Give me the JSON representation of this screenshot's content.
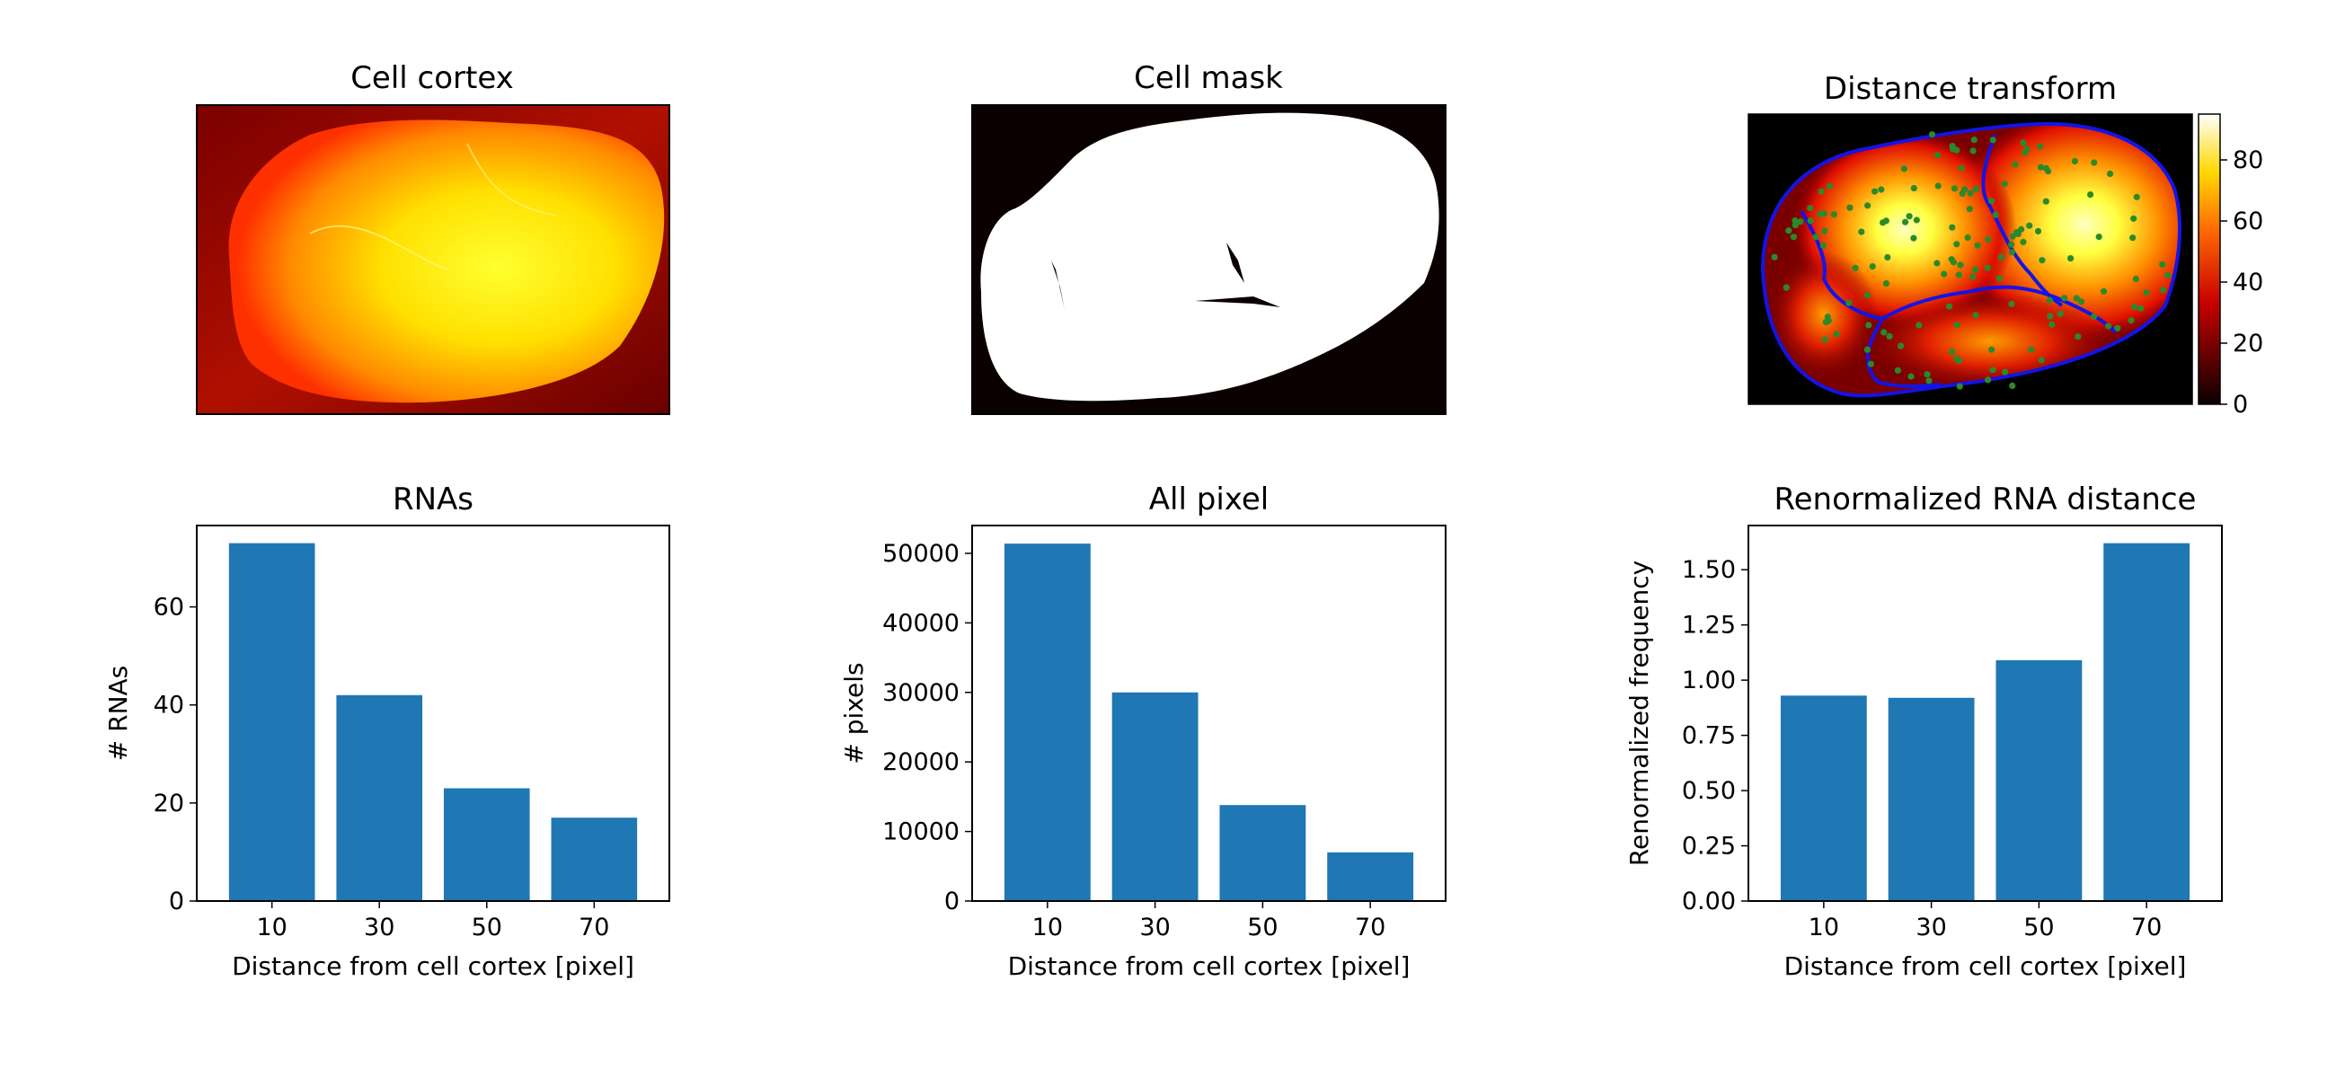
{
  "figure": {
    "panels": [
      {
        "title": "Cell cortex"
      },
      {
        "title": "Cell mask"
      },
      {
        "title": "Distance transform"
      }
    ],
    "colorbar": {
      "ticks": [
        "0",
        "20",
        "40",
        "60",
        "80"
      ],
      "range": [
        0,
        95
      ]
    },
    "colors": {
      "bar": "#1f77b4",
      "contour": "#1414e6",
      "rna_points": "#2a8a2a"
    }
  },
  "chart_data": [
    {
      "type": "bar",
      "title": "RNAs",
      "xlabel": "Distance from cell cortex [pixel]",
      "ylabel": "# RNAs",
      "categories": [
        "10",
        "30",
        "50",
        "70"
      ],
      "values": [
        73,
        42,
        23,
        17
      ],
      "ylim": [
        0,
        76.6
      ],
      "yticks": [
        0,
        20,
        40,
        60
      ],
      "ytick_labels": [
        "0",
        "20",
        "40",
        "60"
      ]
    },
    {
      "type": "bar",
      "title": "All pixel",
      "xlabel": "Distance from cell cortex [pixel]",
      "ylabel": "# pixels",
      "categories": [
        "10",
        "30",
        "50",
        "70"
      ],
      "values": [
        51400,
        30000,
        13800,
        7000
      ],
      "ylim": [
        0,
        54000
      ],
      "yticks": [
        0,
        10000,
        20000,
        30000,
        40000,
        50000
      ],
      "ytick_labels": [
        "0",
        "10000",
        "20000",
        "30000",
        "40000",
        "50000"
      ]
    },
    {
      "type": "bar",
      "title": "Renormalized RNA distance",
      "xlabel": "Distance from cell cortex [pixel]",
      "ylabel": "Renormalized frequency",
      "categories": [
        "10",
        "30",
        "50",
        "70"
      ],
      "values": [
        0.93,
        0.92,
        1.09,
        1.62
      ],
      "ylim": [
        0,
        1.7
      ],
      "yticks": [
        0,
        0.25,
        0.5,
        0.75,
        1.0,
        1.25,
        1.5
      ],
      "ytick_labels": [
        "0.00",
        "0.25",
        "0.50",
        "0.75",
        "1.00",
        "1.25",
        "1.50"
      ]
    }
  ]
}
